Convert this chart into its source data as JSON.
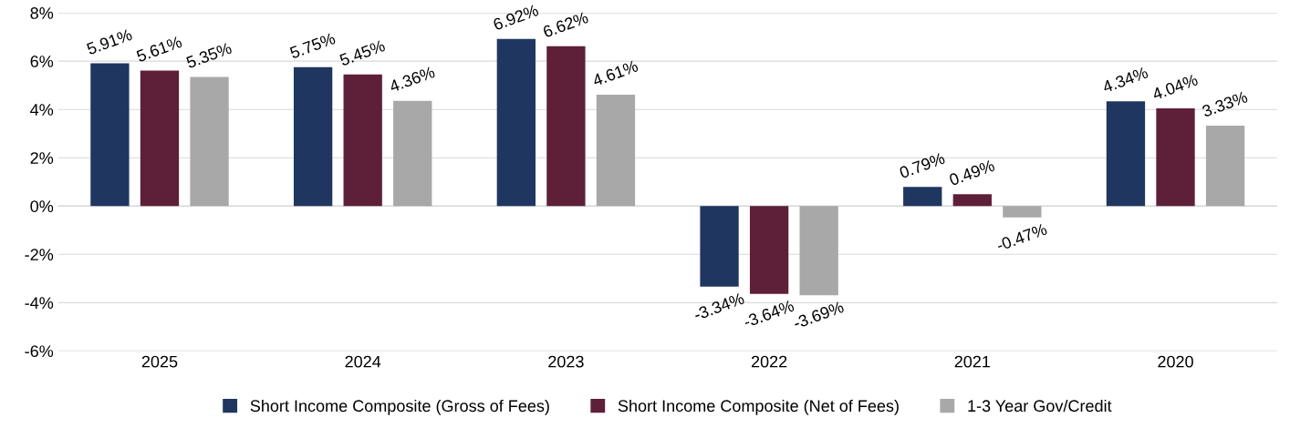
{
  "chart_data": {
    "type": "bar",
    "categories": [
      "2025",
      "2024",
      "2023",
      "2022",
      "2021",
      "2020"
    ],
    "series": [
      {
        "name": "Short Income Composite (Gross of Fees)",
        "color": "#1f3660",
        "values": [
          5.91,
          5.75,
          6.92,
          -3.34,
          0.79,
          4.34
        ],
        "value_labels": [
          "5.91%",
          "5.75%",
          "6.92%",
          "-3.34%",
          "0.79%",
          "4.34%"
        ]
      },
      {
        "name": "Short Income Composite (Net of Fees)",
        "color": "#5e1f38",
        "values": [
          5.61,
          5.45,
          6.62,
          -3.64,
          0.49,
          4.04
        ],
        "value_labels": [
          "5.61%",
          "5.45%",
          "6.62%",
          "-3.64%",
          "0.49%",
          "4.04%"
        ]
      },
      {
        "name": "1-3 Year Gov/Credit",
        "color": "#a8a8a8",
        "values": [
          5.35,
          4.36,
          4.61,
          -3.69,
          -0.47,
          3.33
        ],
        "value_labels": [
          "5.35%",
          "4.36%",
          "4.61%",
          "-3.69%",
          "-0.47%",
          "3.33%"
        ]
      }
    ],
    "ylim": [
      -6,
      8
    ],
    "yticks": [
      {
        "value": -6,
        "label": "-6%"
      },
      {
        "value": -4,
        "label": "-4%"
      },
      {
        "value": -2,
        "label": "-2%"
      },
      {
        "value": 0,
        "label": "0%"
      },
      {
        "value": 2,
        "label": "2%"
      },
      {
        "value": 4,
        "label": "4%"
      },
      {
        "value": 6,
        "label": "6%"
      },
      {
        "value": 8,
        "label": "8%"
      }
    ],
    "grid": "y",
    "legend": "bottom"
  }
}
